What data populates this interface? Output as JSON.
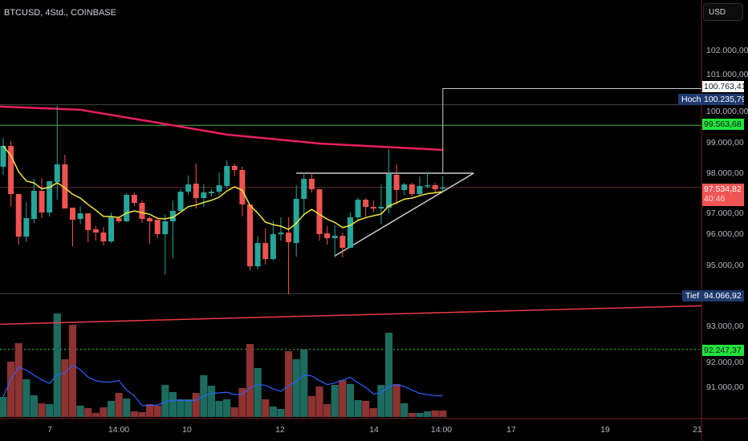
{
  "header": {
    "symbol_title": "BTCUSD, 4Std., COINBASE",
    "currency_button": "USD"
  },
  "price_axis": {
    "ticks": [
      "102.000,00",
      "101.000,00",
      "100.000,00",
      "99.000,00",
      "98.000,00",
      "97.000,00",
      "96.000,00",
      "95.000,00",
      "93.000,00",
      "92.000,00",
      "91.000,00"
    ]
  },
  "time_axis": {
    "ticks": [
      "7",
      "14:00",
      "10",
      "12",
      "14",
      "14:00",
      "17",
      "19",
      "21"
    ]
  },
  "labels": {
    "white_level": {
      "value": "100.763,41",
      "price": 100763.41
    },
    "high": {
      "label": "Hoch",
      "value": "100.235,79",
      "price": 100235.79
    },
    "green_level": {
      "value": "99.563,68",
      "price": 99563.68
    },
    "last_price": {
      "value": "97.534,82",
      "countdown": "40:46",
      "price": 97534.82
    },
    "low": {
      "label": "Tief",
      "value": "94.066,92",
      "price": 94066.92
    },
    "green_dotted": {
      "value": "92.247,37",
      "price": 92247.37
    }
  },
  "colors": {
    "up": "#26a69a",
    "down": "#ef5350",
    "vol_up": "#1d6b5f",
    "vol_down": "#8e3232",
    "ema": "#f5e642",
    "ma200": "#e91e63",
    "trend": "#f23645",
    "volma": "#2962ff",
    "green_level": "#4caf50",
    "accent_tag": "#1e3a6e"
  },
  "chart_data": {
    "type": "candlestick",
    "ohlc": [
      [
        98210,
        99153,
        97948,
        98891
      ],
      [
        98891,
        99048,
        96926,
        97319
      ],
      [
        97319,
        97319,
        95668,
        95930
      ],
      [
        95930,
        97057,
        95747,
        96533
      ],
      [
        96507,
        97817,
        96376,
        97424
      ],
      [
        97424,
        97843,
        96533,
        96716
      ],
      [
        96716,
        97738,
        96585,
        97738
      ],
      [
        97710,
        100201,
        97135,
        98288
      ],
      [
        98288,
        98603,
        96847,
        96847
      ],
      [
        96873,
        96873,
        95616,
        96480
      ],
      [
        96507,
        96900,
        96349,
        96690
      ],
      [
        96690,
        96690,
        95747,
        96140
      ],
      [
        96166,
        96271,
        95799,
        96061
      ],
      [
        96061,
        96245,
        95642,
        95773
      ],
      [
        95773,
        96716,
        95721,
        96559
      ],
      [
        96533,
        96585,
        96376,
        96428
      ],
      [
        96428,
        97350,
        96402,
        97293
      ],
      [
        97293,
        97371,
        96926,
        97031
      ],
      [
        97031,
        97109,
        96376,
        96507
      ],
      [
        96533,
        96585,
        95694,
        96428
      ],
      [
        96480,
        96480,
        95878,
        96009
      ],
      [
        96009,
        96664,
        94699,
        96428
      ],
      [
        96428,
        97109,
        95223,
        96769
      ],
      [
        96769,
        97476,
        96769,
        97397
      ],
      [
        97397,
        97920,
        97293,
        97633
      ],
      [
        97659,
        98314,
        96847,
        97188
      ],
      [
        97188,
        97633,
        96900,
        97371
      ],
      [
        97345,
        97476,
        97240,
        97397
      ],
      [
        97397,
        98020,
        97293,
        97607
      ],
      [
        97581,
        98420,
        97502,
        98236
      ],
      [
        98236,
        98314,
        97900,
        98105
      ],
      [
        98105,
        98210,
        96585,
        96978
      ],
      [
        96978,
        96978,
        94830,
        94961
      ],
      [
        94961,
        95930,
        94860,
        95721
      ],
      [
        95721,
        96200,
        95020,
        95197
      ],
      [
        95197,
        96450,
        95150,
        96009
      ],
      [
        96009,
        96560,
        95800,
        96061
      ],
      [
        96061,
        96560,
        94044,
        95747
      ],
      [
        95721,
        97600,
        95270,
        97162
      ],
      [
        97162,
        98020,
        96585,
        97817
      ],
      [
        97817,
        98020,
        97371,
        97476
      ],
      [
        97476,
        97476,
        95799,
        96009
      ],
      [
        96035,
        96271,
        95668,
        95878
      ],
      [
        95878,
        96300,
        95250,
        95956
      ],
      [
        95956,
        96061,
        95250,
        95563
      ],
      [
        95563,
        96716,
        95540,
        96559
      ],
      [
        96559,
        97188,
        96430,
        97135
      ],
      [
        97135,
        97188,
        96585,
        96900
      ],
      [
        96900,
        97109,
        96716,
        96847
      ],
      [
        96847,
        97633,
        96323,
        96900
      ],
      [
        96873,
        98786,
        96690,
        97974
      ],
      [
        97948,
        98288,
        96978,
        97450
      ],
      [
        97450,
        97686,
        97293,
        97633
      ],
      [
        97633,
        97686,
        97240,
        97319
      ],
      [
        97319,
        97895,
        97240,
        97581
      ],
      [
        97581,
        98020,
        97502,
        97607
      ],
      [
        97607,
        97686,
        97371,
        97476
      ],
      [
        97529,
        97900,
        97371,
        97535
      ]
    ],
    "volume": [
      {
        "v": 25,
        "up": true
      },
      {
        "v": 69,
        "up": false
      },
      {
        "v": 92,
        "up": false
      },
      {
        "v": 47,
        "up": true
      },
      {
        "v": 27,
        "up": true
      },
      {
        "v": 17,
        "up": false
      },
      {
        "v": 16,
        "up": true
      },
      {
        "v": 129,
        "up": true
      },
      {
        "v": 72,
        "up": false
      },
      {
        "v": 115,
        "up": false
      },
      {
        "v": 14,
        "up": true
      },
      {
        "v": 11,
        "up": false
      },
      {
        "v": 5,
        "up": false
      },
      {
        "v": 12,
        "up": false
      },
      {
        "v": 20,
        "up": true
      },
      {
        "v": 30,
        "up": false
      },
      {
        "v": 23,
        "up": true
      },
      {
        "v": 7,
        "up": false
      },
      {
        "v": 6,
        "up": false
      },
      {
        "v": 16,
        "up": false
      },
      {
        "v": 14,
        "up": false
      },
      {
        "v": 40,
        "up": true
      },
      {
        "v": 31,
        "up": true
      },
      {
        "v": 22,
        "up": true
      },
      {
        "v": 22,
        "up": true
      },
      {
        "v": 30,
        "up": false
      },
      {
        "v": 52,
        "up": true
      },
      {
        "v": 39,
        "up": true
      },
      {
        "v": 20,
        "up": true
      },
      {
        "v": 22,
        "up": true
      },
      {
        "v": 12,
        "up": false
      },
      {
        "v": 36,
        "up": false
      },
      {
        "v": 91,
        "up": false
      },
      {
        "v": 61,
        "up": true
      },
      {
        "v": 22,
        "up": false
      },
      {
        "v": 13,
        "up": true
      },
      {
        "v": 10,
        "up": true
      },
      {
        "v": 82,
        "up": false
      },
      {
        "v": 72,
        "up": true
      },
      {
        "v": 84,
        "up": true
      },
      {
        "v": 26,
        "up": false
      },
      {
        "v": 38,
        "up": false
      },
      {
        "v": 16,
        "up": false
      },
      {
        "v": 40,
        "up": true
      },
      {
        "v": 46,
        "up": false
      },
      {
        "v": 41,
        "up": true
      },
      {
        "v": 21,
        "up": true
      },
      {
        "v": 20,
        "up": false
      },
      {
        "v": 11,
        "up": false
      },
      {
        "v": 40,
        "up": true
      },
      {
        "v": 105,
        "up": true
      },
      {
        "v": 41,
        "up": false
      },
      {
        "v": 17,
        "up": true
      },
      {
        "v": 5,
        "up": false
      },
      {
        "v": 5,
        "up": true
      },
      {
        "v": 7,
        "up": true
      },
      {
        "v": 8,
        "up": false
      },
      {
        "v": 8,
        "up": false
      }
    ],
    "ma200": [
      [
        -0.4,
        100175
      ],
      [
        10,
        100070
      ],
      [
        20,
        99650
      ],
      [
        29,
        99260
      ],
      [
        41,
        98970
      ],
      [
        57,
        98760
      ]
    ],
    "trendline_red": [
      [
        -0.4,
        93070
      ],
      [
        90.5,
        93670
      ]
    ],
    "triangle": {
      "top": [
        [
          38,
          98000
        ],
        [
          61,
          98000
        ]
      ],
      "bottom": [
        [
          43,
          95300
        ],
        [
          61,
          98000
        ]
      ]
    },
    "ylim": [
      90400,
      103700
    ]
  }
}
